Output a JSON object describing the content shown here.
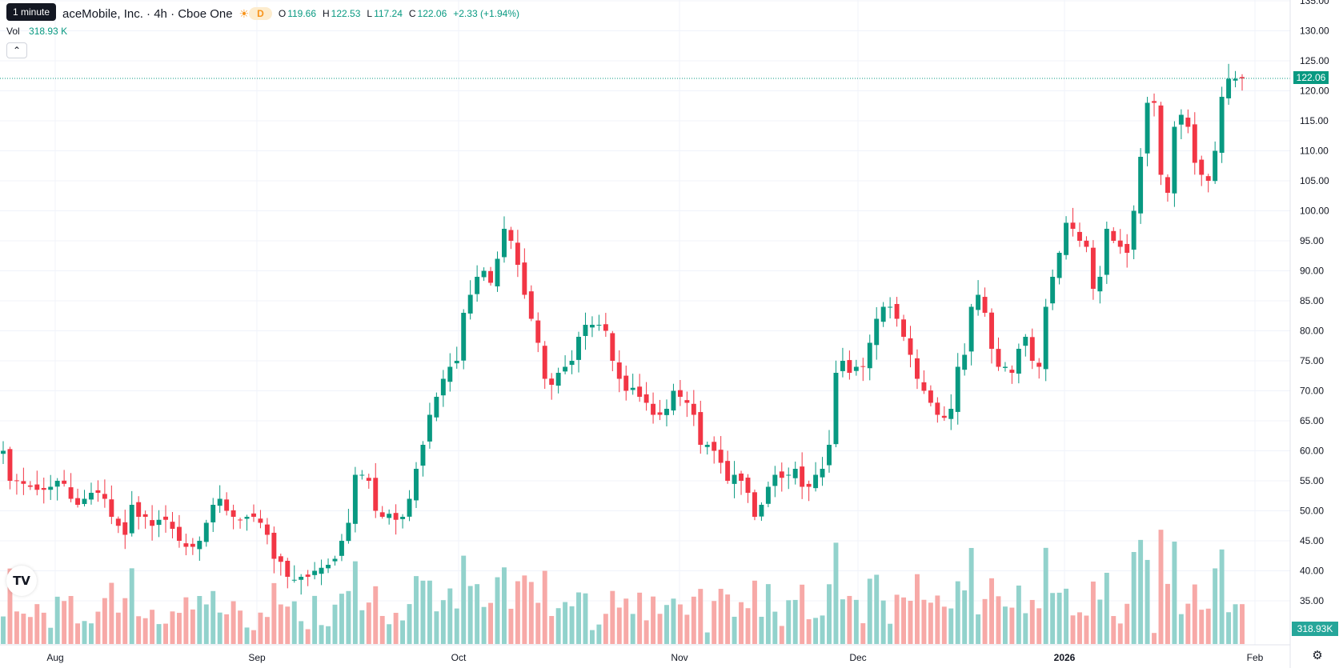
{
  "legend": {
    "tooltip": "1 minute",
    "title": "aceMobile, Inc. · 4h · Cboe One",
    "session_badge": "D",
    "o_label": "O",
    "o_value": "119.66",
    "h_label": "H",
    "h_value": "122.53",
    "l_label": "L",
    "l_value": "117.24",
    "c_label": "C",
    "c_value": "122.06",
    "change": "+2.33 (+1.94%)"
  },
  "volume_legend": {
    "label": "Vol",
    "value": "318.93 K"
  },
  "collapse_icon": "chevron-up-icon",
  "logo_text": "TV",
  "settings_icon": "gear-icon",
  "price_tag": "122.06",
  "volume_tag": "318.93K",
  "colors": {
    "up": "#089981",
    "down": "#f23645",
    "up_volume": "#92d2cc",
    "down_volume": "#f7a9a7",
    "last_price_line": "#089981"
  },
  "chart_data": {
    "type": "candlestick",
    "interval": "4h",
    "y_axis": {
      "ylim": [
        29,
        136
      ],
      "ticks": [
        "35.00",
        "40.00",
        "45.00",
        "50.00",
        "55.00",
        "60.00",
        "65.00",
        "70.00",
        "75.00",
        "80.00",
        "85.00",
        "90.00",
        "95.00",
        "100.00",
        "105.00",
        "110.00",
        "115.00",
        "120.00",
        "125.00",
        "130.00",
        "135.00"
      ]
    },
    "x_axis": {
      "labels": [
        "Aug",
        "Sep",
        "Oct",
        "Nov",
        "Dec",
        "2026",
        "Feb"
      ]
    },
    "last_price": 122.06,
    "close_path": [
      60,
      55,
      55,
      54.5,
      54,
      53.5,
      53.5,
      54,
      55,
      54.5,
      52,
      51,
      52,
      53,
      53,
      52,
      49,
      47.5,
      46,
      51,
      49,
      49,
      47.5,
      48.5,
      48.5,
      47,
      45,
      44,
      44,
      45,
      48,
      51,
      52,
      50,
      49,
      48.5,
      49,
      49,
      48,
      46,
      42,
      41.5,
      39,
      38.5,
      39,
      39,
      40,
      40.5,
      41,
      42,
      45,
      48,
      56,
      56,
      55,
      50,
      49,
      49.5,
      48.5,
      49,
      52,
      57,
      61,
      66,
      69,
      72,
      74,
      75,
      83,
      86,
      89,
      90,
      88,
      92,
      97,
      95,
      91,
      86,
      82,
      78,
      72,
      71,
      73,
      74,
      75,
      79,
      81,
      81,
      81,
      80,
      75,
      72,
      70,
      70.5,
      69,
      68,
      66,
      66,
      67,
      70,
      69,
      68,
      66,
      61,
      61,
      60,
      58,
      55,
      56,
      55,
      53,
      49,
      51,
      54,
      56,
      55.5,
      56,
      57,
      54,
      54,
      56,
      57,
      61,
      73,
      75,
      73,
      74,
      74,
      78,
      82,
      84,
      84,
      82,
      79,
      76,
      72,
      70,
      68,
      66,
      65.5,
      67,
      74,
      76,
      84,
      86,
      83,
      77,
      74,
      74,
      73,
      77,
      79,
      75,
      74,
      84,
      89,
      93,
      98,
      97,
      95,
      94,
      87,
      89,
      97,
      95,
      94,
      93,
      100,
      109,
      118,
      118,
      106,
      103,
      114,
      116,
      114,
      108,
      106,
      105,
      110,
      119,
      122,
      122,
      122.06
    ]
  }
}
